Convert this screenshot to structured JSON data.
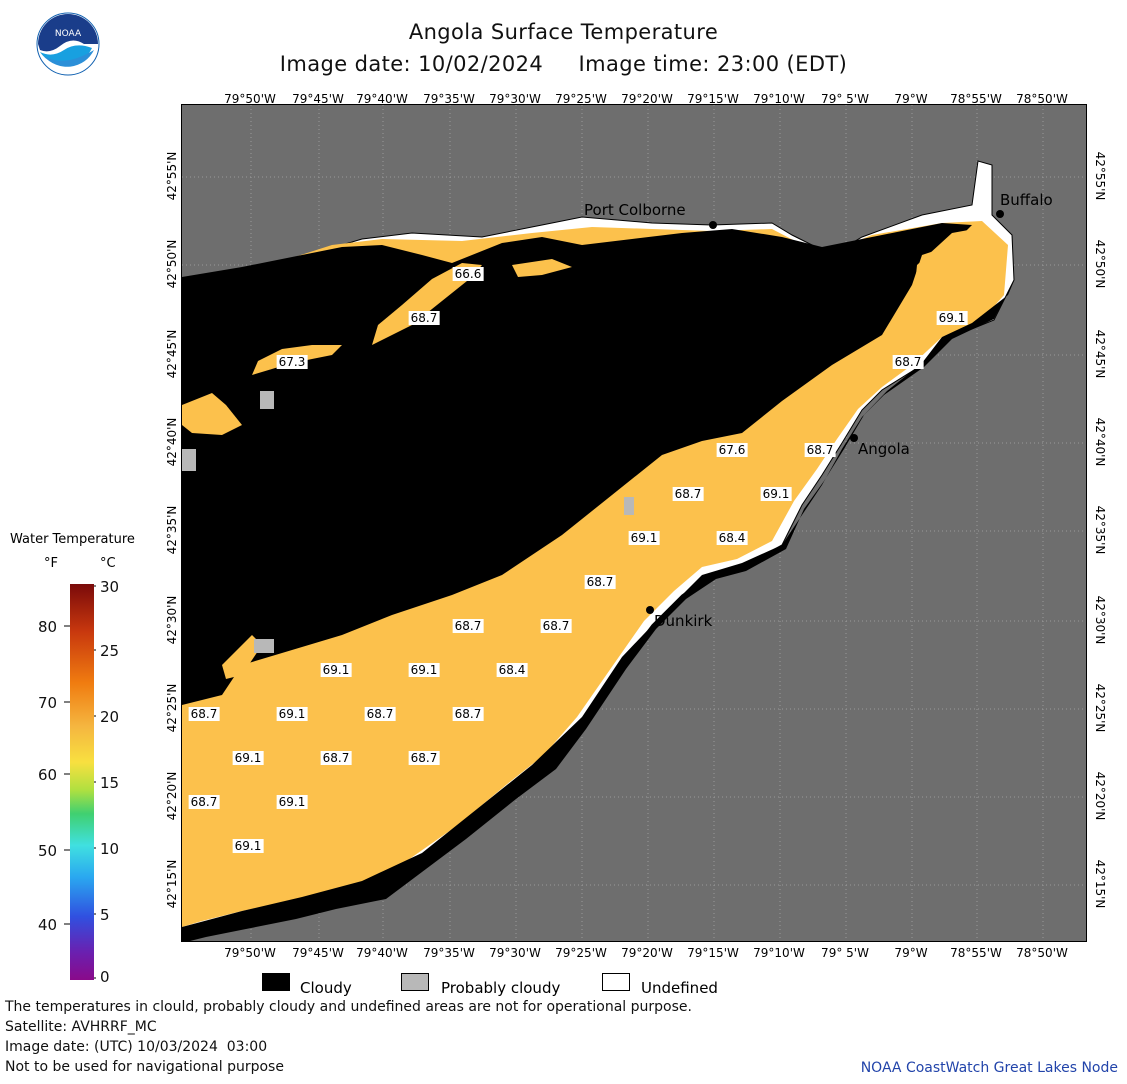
{
  "header": {
    "title": "Angola Surface Temperature",
    "date_line": "Image date: 10/02/2024     Image time: 23:00 (EDT)"
  },
  "logo": {
    "text": "NOAA",
    "icon": "noaa-logo-icon"
  },
  "axes": {
    "longitude_labels": [
      "79°50'W",
      "79°45'W",
      "79°40'W",
      "79°35'W",
      "79°30'W",
      "79°25'W",
      "79°20'W",
      "79°15'W",
      "79°10'W",
      "79° 5'W",
      "79°W",
      "78°55'W",
      "78°50'W"
    ],
    "latitude_labels": [
      "42°55'N",
      "42°50'N",
      "42°45'N",
      "42°40'N",
      "42°35'N",
      "42°30'N",
      "42°25'N",
      "42°20'N",
      "42°15'N"
    ]
  },
  "cities": [
    {
      "name": "Port Colborne"
    },
    {
      "name": "Buffalo"
    },
    {
      "name": "Angola"
    },
    {
      "name": "Dunkirk"
    }
  ],
  "temperature_labels": [
    "66.6",
    "68.7",
    "67.3",
    "67.6",
    "68.7",
    "68.7",
    "69.1",
    "69.1",
    "68.4",
    "68.7",
    "68.7",
    "68.7",
    "69.1",
    "69.1",
    "68.4",
    "68.7",
    "69.1",
    "68.7",
    "68.7",
    "69.1",
    "68.7",
    "68.7",
    "68.7",
    "69.1",
    "69.1",
    "68.7",
    "69.1"
  ],
  "legend": {
    "title": "Water Temperature",
    "unit_f": "°F",
    "unit_c": "°C",
    "fahrenheit_ticks": [
      "80",
      "70",
      "60",
      "50",
      "40"
    ],
    "celsius_ticks": [
      "30",
      "25",
      "20",
      "15",
      "10",
      "5",
      "0"
    ],
    "colors": [
      "#7a0a0a",
      "#c8380e",
      "#f07c10",
      "#f5b640",
      "#f8e040",
      "#b0e040",
      "#40d070",
      "#40e0e0",
      "#2aa8f0",
      "#3050e0",
      "#6a20b0",
      "#8a0a8a"
    ]
  },
  "key": {
    "cloudy": "Cloudy",
    "probably_cloudy": "Probably cloudy",
    "undefined": "Undefined",
    "colors": {
      "cloudy": "#000000",
      "probably_cloudy": "#b8b8b8",
      "undefined": "#ffffff",
      "land": "#6e6e6e",
      "water": "#fcc14c"
    }
  },
  "footer": {
    "line1": "The temperatures in clould, probably cloudy and undefined areas are not for operational purpose.",
    "line2": "Satellite: AVHRRF_MC",
    "line3": "Image date: (UTC) 10/03/2024  03:00",
    "line4": "Not to be used for navigational purpose",
    "credit": "NOAA CoastWatch Great Lakes Node"
  }
}
